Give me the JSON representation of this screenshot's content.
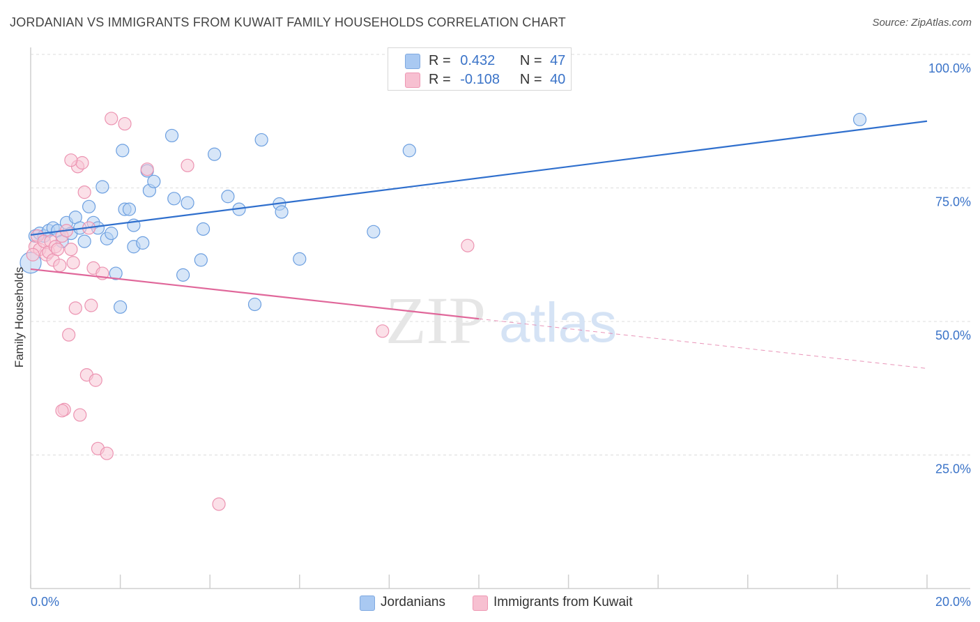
{
  "header": {
    "title": "JORDANIAN VS IMMIGRANTS FROM KUWAIT FAMILY HOUSEHOLDS CORRELATION CHART",
    "source": "Source: ZipAtlas.com"
  },
  "watermark": {
    "zip": "ZIP",
    "atlas": "atlas"
  },
  "legend": {
    "r_label": "R =",
    "n_label": "N =",
    "rows": [
      {
        "r": "0.432",
        "n": "47",
        "color": "#a9c9f2",
        "border": "#7fa9e0"
      },
      {
        "r": "-0.108",
        "n": "40",
        "color": "#f7c0d1",
        "border": "#ee97b3"
      }
    ]
  },
  "chart_data": {
    "type": "scatter",
    "ylabel": "Family Households",
    "xlim": [
      0,
      20
    ],
    "ylim": [
      0,
      100
    ],
    "x_tick_labels": [
      "0.0%",
      "20.0%"
    ],
    "y_ticks": [
      {
        "value": 100,
        "label": "100.0%"
      },
      {
        "value": 75,
        "label": "75.0%"
      },
      {
        "value": 50,
        "label": "50.0%"
      },
      {
        "value": 25,
        "label": "25.0%"
      }
    ],
    "grid": "horizontal dashed",
    "series": [
      {
        "name": "Jordanians",
        "color": "#6c9fe0",
        "fill": "#b7d1f3",
        "trend": {
          "x0": 0,
          "y0": 66.2,
          "x1": 20,
          "y1": 87.5,
          "solid_until": 20
        },
        "points": [
          [
            0.1,
            66
          ],
          [
            0.2,
            66.5
          ],
          [
            0.3,
            66
          ],
          [
            0.4,
            67
          ],
          [
            0.5,
            67.5
          ],
          [
            0.6,
            67
          ],
          [
            0.7,
            65
          ],
          [
            0.8,
            68.5
          ],
          [
            0.9,
            66.5
          ],
          [
            1.0,
            69.5
          ],
          [
            1.1,
            67.5
          ],
          [
            1.2,
            65
          ],
          [
            1.3,
            71.5
          ],
          [
            1.4,
            68.5
          ],
          [
            1.5,
            67.5
          ],
          [
            1.6,
            75.2
          ],
          [
            1.7,
            65.5
          ],
          [
            1.8,
            66.5
          ],
          [
            1.9,
            59
          ],
          [
            2.0,
            52.7
          ],
          [
            2.05,
            82
          ],
          [
            2.1,
            71
          ],
          [
            2.2,
            71
          ],
          [
            2.3,
            68
          ],
          [
            2.3,
            64
          ],
          [
            2.5,
            64.7
          ],
          [
            2.6,
            78.2
          ],
          [
            2.65,
            74.5
          ],
          [
            2.75,
            76.2
          ],
          [
            3.15,
            84.8
          ],
          [
            3.2,
            73
          ],
          [
            3.4,
            58.7
          ],
          [
            3.5,
            72.2
          ],
          [
            3.8,
            61.5
          ],
          [
            3.85,
            67.3
          ],
          [
            4.1,
            81.3
          ],
          [
            4.4,
            73.4
          ],
          [
            4.65,
            71
          ],
          [
            5.0,
            53.2
          ],
          [
            5.15,
            84
          ],
          [
            5.55,
            72
          ],
          [
            5.6,
            70.5
          ],
          [
            6.0,
            61.7
          ],
          [
            7.65,
            66.8
          ],
          [
            8.45,
            82
          ],
          [
            18.5,
            87.8
          ],
          [
            0.0,
            61
          ]
        ]
      },
      {
        "name": "Immigrants from Kuwait",
        "color": "#ec93b1",
        "fill": "#f8c6d6",
        "trend": {
          "x0": 0,
          "y0": 59.8,
          "x1": 20,
          "y1": 41.2,
          "solid_until": 10
        },
        "points": [
          [
            0.1,
            64
          ],
          [
            0.15,
            66
          ],
          [
            0.2,
            63.5
          ],
          [
            0.3,
            65
          ],
          [
            0.35,
            62.5
          ],
          [
            0.4,
            63
          ],
          [
            0.45,
            65
          ],
          [
            0.5,
            61.5
          ],
          [
            0.55,
            64
          ],
          [
            0.6,
            63.5
          ],
          [
            0.65,
            60.5
          ],
          [
            0.7,
            66
          ],
          [
            0.8,
            67
          ],
          [
            0.85,
            47.5
          ],
          [
            0.9,
            63.5
          ],
          [
            0.95,
            61
          ],
          [
            1.0,
            52.5
          ],
          [
            1.05,
            79
          ],
          [
            1.1,
            32.5
          ],
          [
            1.15,
            79.7
          ],
          [
            1.2,
            74.2
          ],
          [
            1.25,
            40
          ],
          [
            1.3,
            67.5
          ],
          [
            1.35,
            53
          ],
          [
            1.4,
            60
          ],
          [
            1.45,
            39
          ],
          [
            1.5,
            26.2
          ],
          [
            1.6,
            59
          ],
          [
            1.7,
            25.3
          ],
          [
            1.8,
            88
          ],
          [
            2.1,
            87
          ],
          [
            2.6,
            78.5
          ],
          [
            3.5,
            79.2
          ],
          [
            4.2,
            15.8
          ],
          [
            7.85,
            48.2
          ],
          [
            9.75,
            64.2
          ],
          [
            0.75,
            33.5
          ],
          [
            0.7,
            33.3
          ],
          [
            0.9,
            80.2
          ],
          [
            0.05,
            62.5
          ]
        ]
      }
    ]
  }
}
